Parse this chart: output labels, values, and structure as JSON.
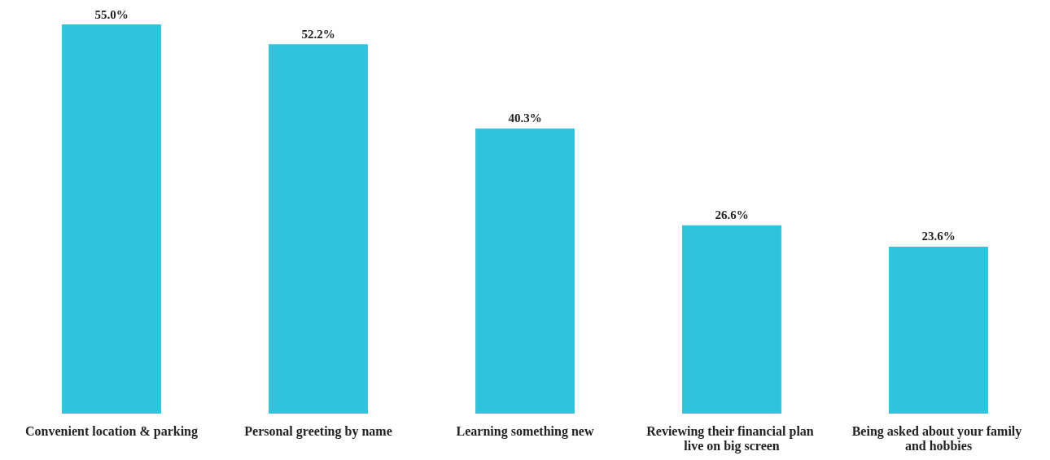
{
  "chart_data": {
    "type": "bar",
    "categories": [
      "Convenient location & parking",
      "Personal greeting by name",
      "Learning something new",
      "Reviewing their financial plan live on big screen",
      "Being asked about your family and hobbies"
    ],
    "values": [
      55.0,
      52.2,
      40.3,
      26.6,
      23.6
    ],
    "color": "#2ec4de",
    "value_labels": [
      "55.0%",
      "52.2%",
      "40.3%",
      "26.6%",
      "23.6%"
    ],
    "grid": false
  }
}
